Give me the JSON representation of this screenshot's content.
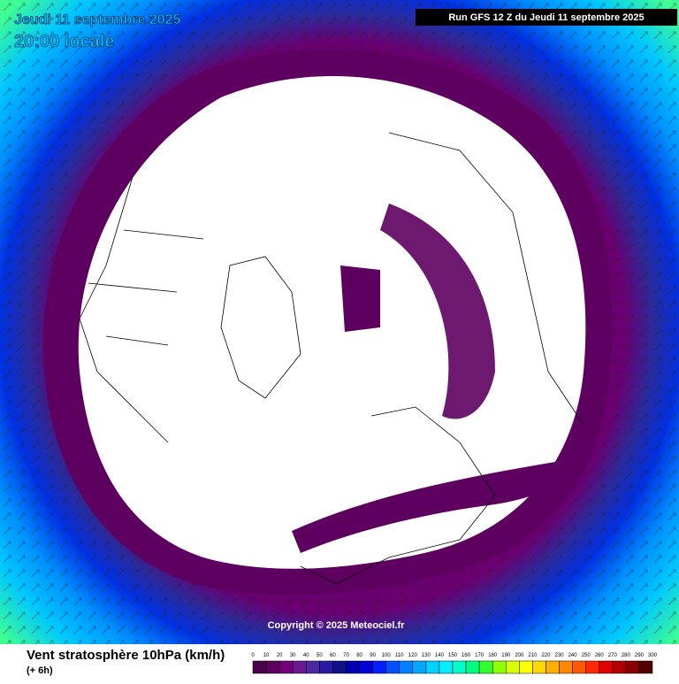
{
  "header": {
    "date": "Jeudi 11 septembre 2025",
    "time": "20:00 locale",
    "run": "Run GFS 12 Z du Jeudi 11 septembre 2025"
  },
  "copyright": "Copyright © 2025 Meteociel.fr",
  "legend": {
    "title": "Vent stratosphère 10hPa (km/h)",
    "subtitle": "(+ 6h)",
    "ticks": [
      0,
      10,
      20,
      30,
      40,
      50,
      60,
      70,
      80,
      90,
      100,
      110,
      120,
      130,
      140,
      150,
      160,
      170,
      180,
      190,
      200,
      210,
      220,
      230,
      240,
      250,
      260,
      270,
      280,
      290,
      300
    ],
    "colors": [
      "#4a0048",
      "#5e005e",
      "#74007a",
      "#6a1a8e",
      "#4a2aa0",
      "#2a1aa0",
      "#10108c",
      "#0000b0",
      "#0000d8",
      "#0020ff",
      "#0050ff",
      "#0080ff",
      "#00a8ff",
      "#00d0ff",
      "#00f0ff",
      "#00ffc8",
      "#00ff80",
      "#30ff30",
      "#90ff00",
      "#d8ff00",
      "#ffff00",
      "#ffd800",
      "#ffb000",
      "#ff8800",
      "#ff5a00",
      "#ff2800",
      "#e00000",
      "#b40000",
      "#880000",
      "#500000"
    ]
  }
}
